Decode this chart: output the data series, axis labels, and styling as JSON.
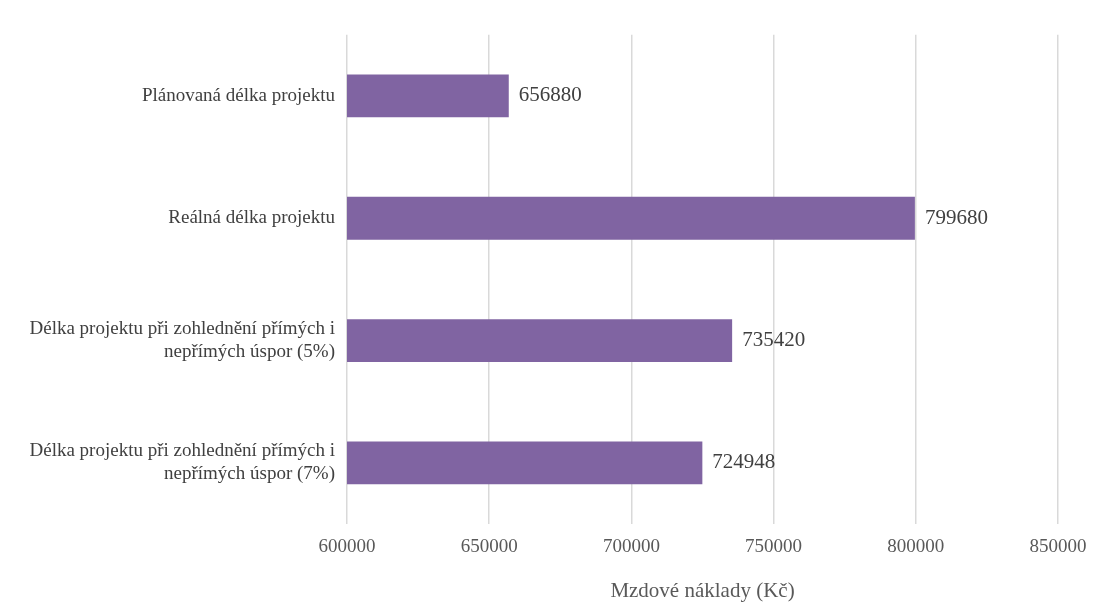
{
  "chart_data": {
    "type": "bar",
    "orientation": "horizontal",
    "xlabel": "Mzdové náklady (Kč)",
    "categories": [
      "Plánovaná délka projektu",
      "Reálná délka projektu",
      "Délka projektu při zohlednění přímých i nepřímých úspor (5%)",
      "Délka projektu při zohlednění přímých i nepřímých úspor (7%)"
    ],
    "values": [
      656880,
      799680,
      735420,
      724948
    ],
    "color": "#8064a2",
    "xlim": [
      600000,
      850000
    ],
    "xticks": [
      600000,
      650000,
      700000,
      750000,
      800000,
      850000
    ],
    "grid": "x",
    "data_labels": true,
    "legend": false
  }
}
